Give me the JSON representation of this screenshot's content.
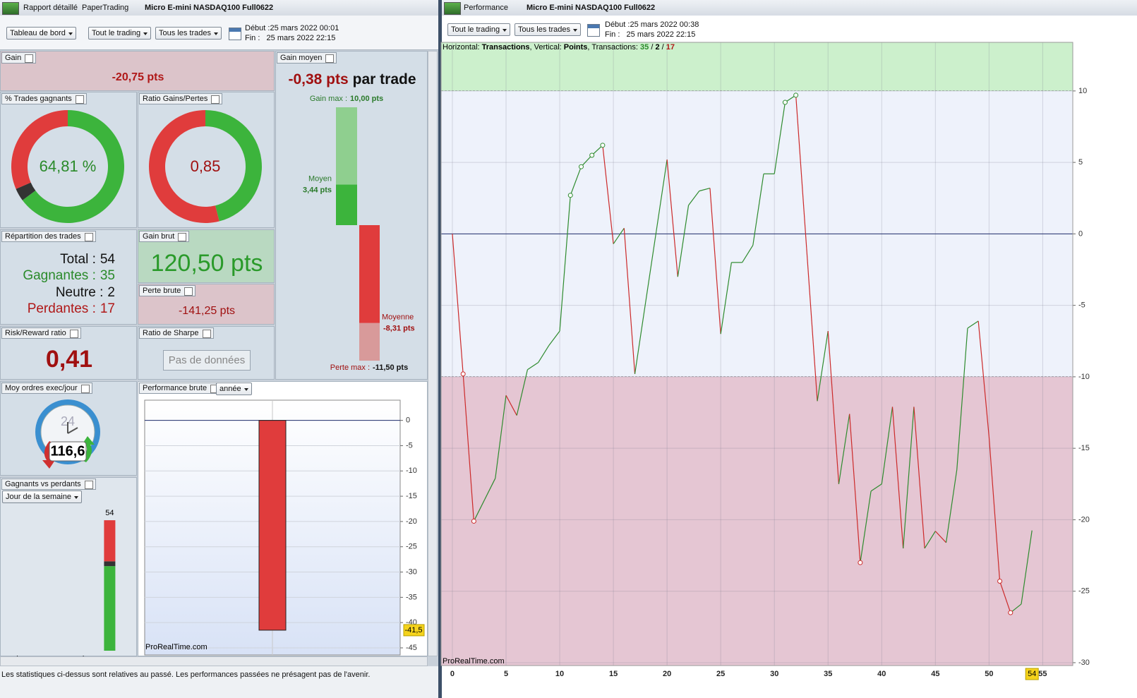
{
  "left_window": {
    "tabs": [
      "Rapport détaillé",
      "PaperTrading",
      "Micro E-mini NASDAQ100 Full0622"
    ],
    "toolbar": {
      "dropdowns": [
        "Tableau de bord",
        "Tout le trading",
        "Tous les trades"
      ],
      "start": "Début :25 mars 2022 00:01",
      "end": "Fin :   25 mars 2022 22:15"
    },
    "gain": {
      "title": "Gain",
      "value": -20.75,
      "label": "-20,75 pts"
    },
    "gain_moyen": {
      "title": "Gain moyen",
      "value": -0.38,
      "label": "-0,38 pts",
      "suffix": "par trade",
      "max": {
        "caption": "Gain max :",
        "value": 10,
        "label": "10,00 pts"
      },
      "avg_gain": {
        "caption": "Moyen",
        "value": 3.44,
        "label": "3,44 pts"
      },
      "avg_loss": {
        "caption": "Moyenne",
        "value": -8.31,
        "label": "-8,31 pts"
      },
      "min": {
        "caption": "Perte max :",
        "value": -11.5,
        "label": "-11,50 pts"
      },
      "colors": [
        "#8fcf8f",
        "#3cb43c",
        "#e03c3c",
        "#d89a9a"
      ]
    },
    "pct_winning": {
      "title": "% Trades gagnants",
      "value": 64.81,
      "label": "64,81 %",
      "colors": [
        "#3cb43c",
        "#333333",
        "#e03c3c"
      ]
    },
    "ratio": {
      "title": "Ratio Gains/Pertes",
      "value": 0.85,
      "label": "0,85",
      "colors": [
        "#3cb43c",
        "#e03c3c"
      ]
    },
    "repartition": {
      "title": "Répartition des trades",
      "rows": [
        {
          "label": "Total :",
          "value": 54,
          "color": "#111111"
        },
        {
          "label": "Gagnantes :",
          "value": 35,
          "color": "#2a8a2a"
        },
        {
          "label": "Neutre :",
          "value": 2,
          "color": "#111111"
        },
        {
          "label": "Perdantes :",
          "value": 17,
          "color": "#b01818"
        }
      ]
    },
    "gain_brut": {
      "title": "Gain brut",
      "value": 120.5,
      "label": "120,50 pts"
    },
    "perte_brute": {
      "title": "Perte brute",
      "value": -141.25,
      "label": "-141,25 pts"
    },
    "risk_reward": {
      "title": "Risk/Reward ratio",
      "value": 0.41,
      "label": "0,41"
    },
    "sharpe": {
      "title": "Ratio de Sharpe",
      "message": "Pas de données"
    },
    "orders": {
      "title": "Moy ordres exec/jour",
      "dial": "24",
      "value": 116.6,
      "label": "116,6"
    },
    "perf_brute": {
      "type": "bar",
      "title": "Performance brute",
      "period": "année",
      "categories": [
        null
      ],
      "values": [
        -41.5
      ],
      "value_labels": [
        "-41,5"
      ],
      "color": "#e03c3c",
      "ylim": [
        -46.4,
        4
      ],
      "yticks": [
        0,
        -5,
        -10,
        -15,
        -20,
        -25,
        -30,
        -35,
        -40,
        -45
      ],
      "grid": true,
      "watermark": "ProRealTime.com"
    },
    "winners_losers": {
      "type": "bar",
      "stacked": true,
      "title": "Gagnants vs perdants",
      "filter": "Jour de la semaine",
      "categories": [
        "lun",
        "mar",
        "mer",
        "jeu",
        "ven"
      ],
      "series": [
        {
          "color": "#3cb43c",
          "values": [
            0,
            0,
            0,
            0,
            35
          ]
        },
        {
          "color": "#333333",
          "values": [
            0,
            0,
            0,
            0,
            2
          ]
        },
        {
          "color": "#e03c3c",
          "values": [
            0,
            0,
            0,
            0,
            17
          ]
        }
      ],
      "totals": [
        null,
        null,
        null,
        null,
        54
      ],
      "ylim": [
        0,
        59
      ]
    },
    "disclaimer": "Les statistiques ci-dessus sont relatives au passé. Les performances passées ne présagent pas de l'avenir."
  },
  "right_window": {
    "tabs": [
      "Performance",
      "Micro E-mini NASDAQ100 Full0622"
    ],
    "toolbar": {
      "dropdowns": [
        "Tout le trading",
        "Tous les trades"
      ],
      "start": "Début :25 mars 2022 00:38",
      "end": "Fin :   25 mars 2022 22:15"
    },
    "chart": {
      "type": "line",
      "header": [
        {
          "text": "Horizontal: "
        },
        {
          "text": "Transactions",
          "bold": true
        },
        {
          "text": ", Vertical: "
        },
        {
          "text": "Points",
          "bold": true
        },
        {
          "text": ", Transactions: "
        },
        {
          "text": "35",
          "bold": true,
          "color": "#2a8a2a"
        },
        {
          "text": " / "
        },
        {
          "text": "2",
          "bold": true
        },
        {
          "text": " / "
        },
        {
          "text": "17",
          "bold": true,
          "color": "#b01818"
        }
      ],
      "x": [
        0,
        1,
        2,
        3,
        4,
        5,
        6,
        7,
        8,
        9,
        10,
        11,
        12,
        13,
        14,
        15,
        16,
        17,
        18,
        19,
        20,
        21,
        22,
        23,
        24,
        25,
        26,
        27,
        28,
        29,
        30,
        31,
        32,
        33,
        34,
        35,
        36,
        37,
        38,
        39,
        40,
        41,
        42,
        43,
        44,
        45,
        46,
        47,
        48,
        49,
        50,
        51,
        52,
        53,
        54
      ],
      "values": [
        0,
        -9.8,
        -20.1,
        -18.6,
        -17.1,
        -11.3,
        -12.7,
        -9.5,
        -9.0,
        -7.8,
        -6.8,
        2.7,
        4.7,
        5.5,
        6.2,
        -0.7,
        0.4,
        -9.8,
        -4.8,
        0.2,
        5.2,
        -3.0,
        2.0,
        3.0,
        3.2,
        -7.0,
        -2.0,
        -2.0,
        -0.8,
        4.2,
        4.2,
        9.2,
        9.7,
        -1.0,
        -11.7,
        -6.8,
        -17.5,
        -12.6,
        -23.0,
        -18.0,
        -17.5,
        -12.1,
        -22.0,
        -12.1,
        -22.0,
        -20.8,
        -21.6,
        -16.5,
        -6.6,
        -6.1,
        -14.2,
        -24.3,
        -26.5,
        -25.9,
        -20.75
      ],
      "up_color": "#2e8b2e",
      "down_color": "#cc2a2a",
      "highlight_points": [
        1,
        2,
        11,
        12,
        13,
        14,
        31,
        32,
        38,
        51,
        52
      ],
      "xlim": [
        -1.05,
        57.8
      ],
      "ylim": [
        -30.2,
        13.4
      ],
      "xticks": [
        0,
        5,
        10,
        15,
        20,
        25,
        30,
        35,
        40,
        45,
        50,
        55
      ],
      "yticks": [
        10,
        5,
        0,
        -5,
        -10,
        -15,
        -20,
        -25,
        -30
      ],
      "grid": true,
      "bands": [
        {
          "from": 10,
          "to": 13.4,
          "color": "#ccf0cc"
        },
        {
          "from": -10,
          "to": 10,
          "color": "#eef2fb"
        },
        {
          "from": -30.2,
          "to": -10,
          "color": "#e5c6d3"
        }
      ],
      "cursor_x": 54,
      "watermark": "ProRealTime.com"
    }
  }
}
